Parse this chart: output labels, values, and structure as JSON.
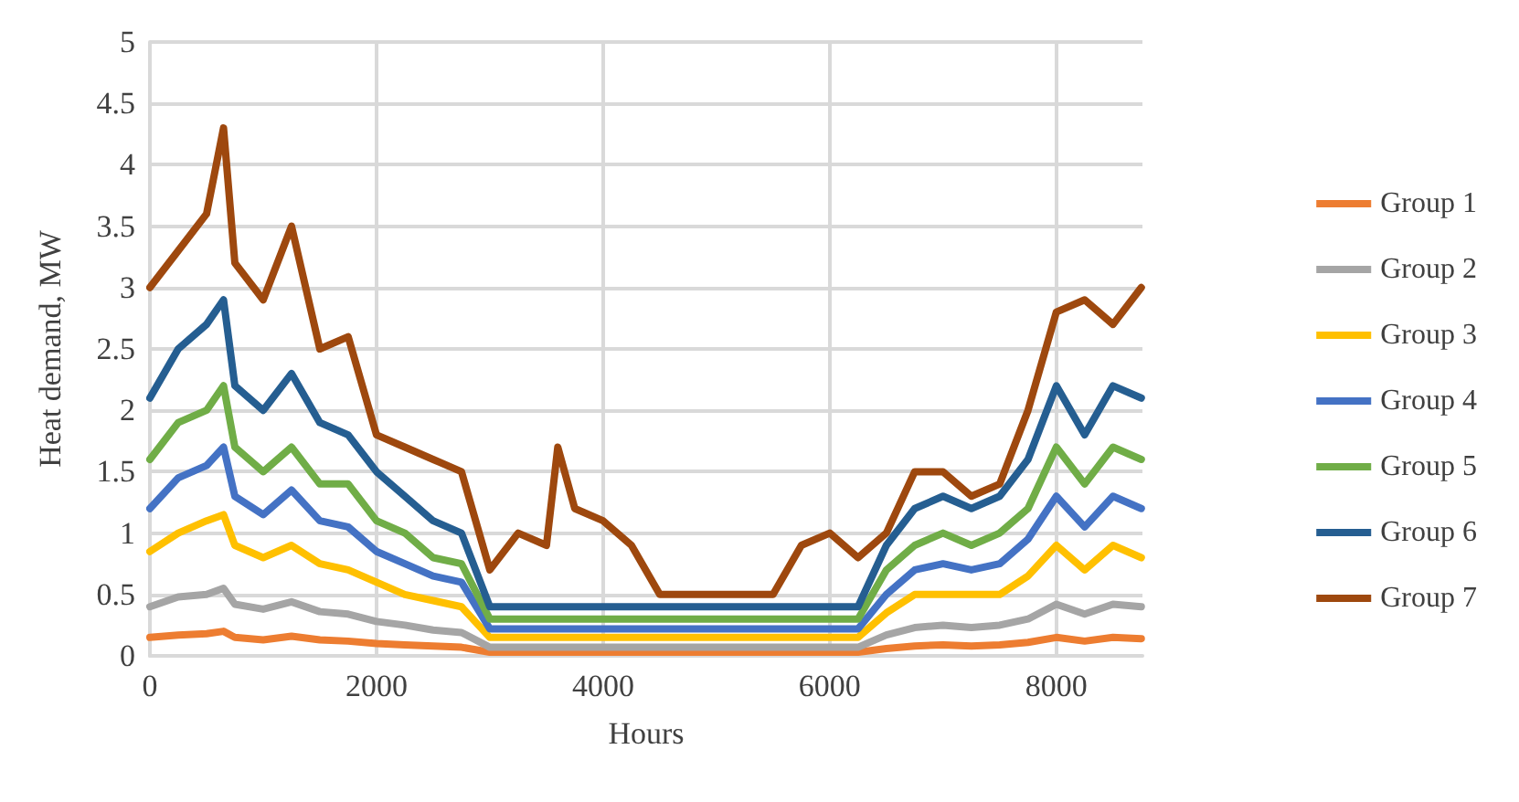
{
  "chart_data": {
    "type": "line",
    "xlabel": "Hours",
    "ylabel": "Heat demand, MW",
    "x": [
      0,
      250,
      500,
      650,
      750,
      1000,
      1250,
      1500,
      1750,
      2000,
      2250,
      2500,
      2750,
      3000,
      3250,
      3500,
      3600,
      3750,
      4000,
      4250,
      4500,
      4750,
      5000,
      5250,
      5500,
      5750,
      6000,
      6250,
      6500,
      6750,
      7000,
      7250,
      7500,
      7750,
      8000,
      8250,
      8500,
      8750
    ],
    "series": [
      {
        "name": "Group 1",
        "color": "#ed7d31",
        "values": [
          0.15,
          0.17,
          0.18,
          0.2,
          0.15,
          0.13,
          0.16,
          0.13,
          0.12,
          0.1,
          0.09,
          0.08,
          0.07,
          0.03,
          0.03,
          0.03,
          0.03,
          0.03,
          0.03,
          0.03,
          0.03,
          0.03,
          0.03,
          0.03,
          0.03,
          0.03,
          0.03,
          0.03,
          0.06,
          0.08,
          0.09,
          0.08,
          0.09,
          0.11,
          0.15,
          0.12,
          0.15,
          0.14
        ]
      },
      {
        "name": "Group 2",
        "color": "#a5a5a5",
        "values": [
          0.4,
          0.48,
          0.5,
          0.55,
          0.42,
          0.38,
          0.44,
          0.36,
          0.34,
          0.28,
          0.25,
          0.21,
          0.19,
          0.07,
          0.07,
          0.07,
          0.07,
          0.07,
          0.07,
          0.07,
          0.07,
          0.07,
          0.07,
          0.07,
          0.07,
          0.07,
          0.07,
          0.07,
          0.17,
          0.23,
          0.25,
          0.23,
          0.25,
          0.3,
          0.42,
          0.34,
          0.42,
          0.4
        ]
      },
      {
        "name": "Group 3",
        "color": "#ffc000",
        "values": [
          0.85,
          1.0,
          1.1,
          1.15,
          0.9,
          0.8,
          0.9,
          0.75,
          0.7,
          0.6,
          0.5,
          0.45,
          0.4,
          0.15,
          0.15,
          0.15,
          0.15,
          0.15,
          0.15,
          0.15,
          0.15,
          0.15,
          0.15,
          0.15,
          0.15,
          0.15,
          0.15,
          0.15,
          0.35,
          0.5,
          0.5,
          0.5,
          0.5,
          0.65,
          0.9,
          0.7,
          0.9,
          0.8
        ]
      },
      {
        "name": "Group 4",
        "color": "#4472c4",
        "values": [
          1.2,
          1.45,
          1.55,
          1.7,
          1.3,
          1.15,
          1.35,
          1.1,
          1.05,
          0.85,
          0.75,
          0.65,
          0.6,
          0.22,
          0.22,
          0.22,
          0.22,
          0.22,
          0.22,
          0.22,
          0.22,
          0.22,
          0.22,
          0.22,
          0.22,
          0.22,
          0.22,
          0.22,
          0.5,
          0.7,
          0.75,
          0.7,
          0.75,
          0.95,
          1.3,
          1.05,
          1.3,
          1.2
        ]
      },
      {
        "name": "Group 5",
        "color": "#70ad47",
        "values": [
          1.6,
          1.9,
          2.0,
          2.2,
          1.7,
          1.5,
          1.7,
          1.4,
          1.4,
          1.1,
          1.0,
          0.8,
          0.75,
          0.3,
          0.3,
          0.3,
          0.3,
          0.3,
          0.3,
          0.3,
          0.3,
          0.3,
          0.3,
          0.3,
          0.3,
          0.3,
          0.3,
          0.3,
          0.7,
          0.9,
          1.0,
          0.9,
          1.0,
          1.2,
          1.7,
          1.4,
          1.7,
          1.6
        ]
      },
      {
        "name": "Group 6",
        "color": "#255e91",
        "values": [
          2.1,
          2.5,
          2.7,
          2.9,
          2.2,
          2.0,
          2.3,
          1.9,
          1.8,
          1.5,
          1.3,
          1.1,
          1.0,
          0.4,
          0.4,
          0.4,
          0.4,
          0.4,
          0.4,
          0.4,
          0.4,
          0.4,
          0.4,
          0.4,
          0.4,
          0.4,
          0.4,
          0.4,
          0.9,
          1.2,
          1.3,
          1.2,
          1.3,
          1.6,
          2.2,
          1.8,
          2.2,
          2.1
        ]
      },
      {
        "name": "Group 7",
        "color": "#9e480e",
        "values": [
          3.0,
          3.3,
          3.6,
          4.3,
          3.2,
          2.9,
          3.5,
          2.5,
          2.6,
          1.8,
          1.7,
          1.6,
          1.5,
          0.7,
          1.0,
          0.9,
          1.7,
          1.2,
          1.1,
          0.9,
          0.5,
          0.5,
          0.5,
          0.5,
          0.5,
          0.9,
          1.0,
          0.8,
          1.0,
          1.5,
          1.5,
          1.3,
          1.4,
          2.0,
          2.8,
          2.9,
          2.7,
          3.0
        ]
      }
    ],
    "xlim": [
      0,
      8760
    ],
    "xticks": [
      0,
      2000,
      4000,
      6000,
      8000
    ],
    "ylim": [
      0,
      5
    ],
    "yticks": [
      0,
      0.5,
      1,
      1.5,
      2,
      2.5,
      3,
      3.5,
      4,
      4.5,
      5
    ],
    "grid": true,
    "legend": "right",
    "marker": "none",
    "line_style": "solid"
  }
}
